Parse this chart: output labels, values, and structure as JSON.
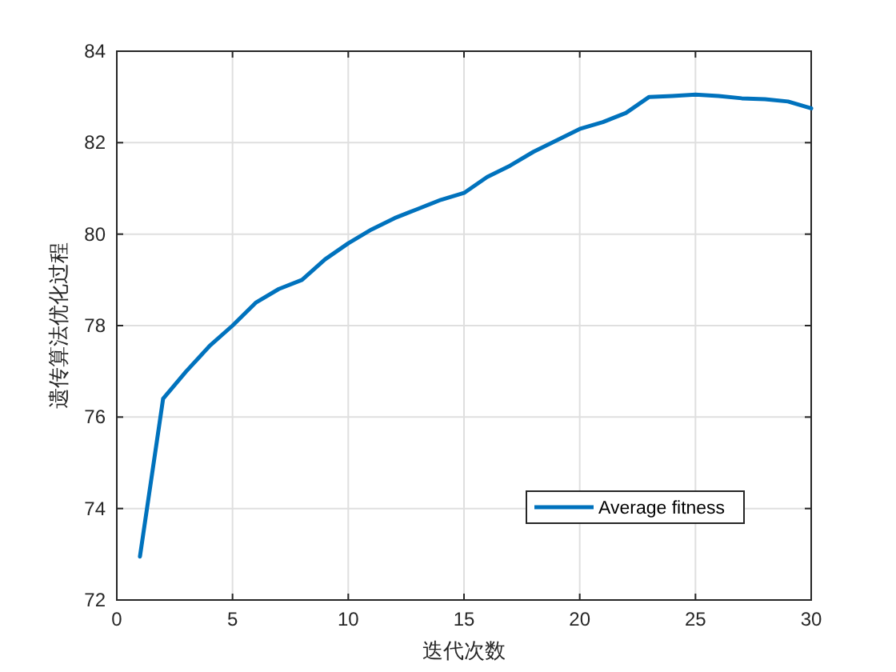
{
  "chart_data": {
    "type": "line",
    "xlabel": "迭代次数",
    "ylabel": "遗传算法优化过程",
    "x": [
      1,
      2,
      3,
      4,
      5,
      6,
      7,
      8,
      9,
      10,
      11,
      12,
      13,
      14,
      15,
      16,
      17,
      18,
      19,
      20,
      21,
      22,
      23,
      24,
      25,
      26,
      27,
      28,
      29,
      30
    ],
    "series": [
      {
        "name": "Average fitness",
        "color": "#0072bd",
        "values": [
          72.95,
          76.4,
          77.0,
          77.55,
          78.0,
          78.5,
          78.8,
          79.0,
          79.45,
          79.8,
          80.1,
          80.35,
          80.55,
          80.75,
          80.9,
          81.25,
          81.5,
          81.8,
          82.05,
          82.3,
          82.45,
          82.65,
          83.0,
          83.02,
          83.05,
          83.02,
          82.97,
          82.95,
          82.9,
          82.75
        ]
      }
    ],
    "xlim": [
      0,
      30
    ],
    "ylim": [
      72,
      84
    ],
    "xticks": [
      0,
      5,
      10,
      15,
      20,
      25,
      30
    ],
    "yticks": [
      72,
      74,
      76,
      78,
      80,
      82,
      84
    ],
    "grid": true,
    "legend": "bottom right",
    "marker": "none",
    "line_style": "solid"
  }
}
